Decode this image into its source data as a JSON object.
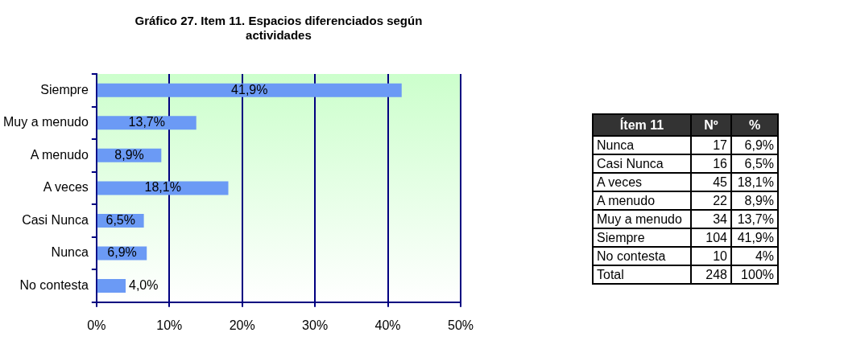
{
  "chart_data": [
    {
      "type": "bar",
      "orientation": "horizontal",
      "title": "Gráfico 27. Item 11. Espacios diferenciados según actividades",
      "categories": [
        "Siempre",
        "Muy a menudo",
        "A menudo",
        "A veces",
        "Casi Nunca",
        "Nunca",
        "No contesta"
      ],
      "values": [
        41.9,
        13.7,
        8.9,
        18.1,
        6.5,
        6.9,
        4.0
      ],
      "value_labels": [
        "41,9%",
        "13,7%",
        "8,9%",
        "18,1%",
        "6,5%",
        "6,9%",
        "4,0%"
      ],
      "color": "#6b9af5",
      "xlim": [
        0,
        50
      ],
      "xticks": [
        {
          "value": 0,
          "label": "0%"
        },
        {
          "value": 10,
          "label": "10%"
        },
        {
          "value": 20,
          "label": "20%"
        },
        {
          "value": 30,
          "label": "30%"
        },
        {
          "value": 40,
          "label": "40%"
        },
        {
          "value": 50,
          "label": "50%"
        }
      ],
      "grid": "x",
      "legend": false
    },
    {
      "type": "other",
      "title": "Ítem 11",
      "data_labels": true,
      "categories": [
        "Nunca",
        "Casi Nunca",
        "A veces",
        "A menudo",
        "Muy a menudo",
        "Siempre",
        "No contesta",
        "Total"
      ],
      "series": [
        {
          "name": "Nº",
          "values": [
            17,
            16,
            45,
            22,
            34,
            104,
            10,
            248
          ]
        },
        {
          "name": "%",
          "values": [
            6.9,
            6.5,
            18.1,
            8.9,
            13.7,
            41.9,
            4,
            100
          ],
          "value_labels": [
            "6,9%",
            "6,5%",
            "18,1%",
            "8,9%",
            "13,7%",
            "41,9%",
            "4%",
            "100%"
          ]
        }
      ]
    }
  ]
}
